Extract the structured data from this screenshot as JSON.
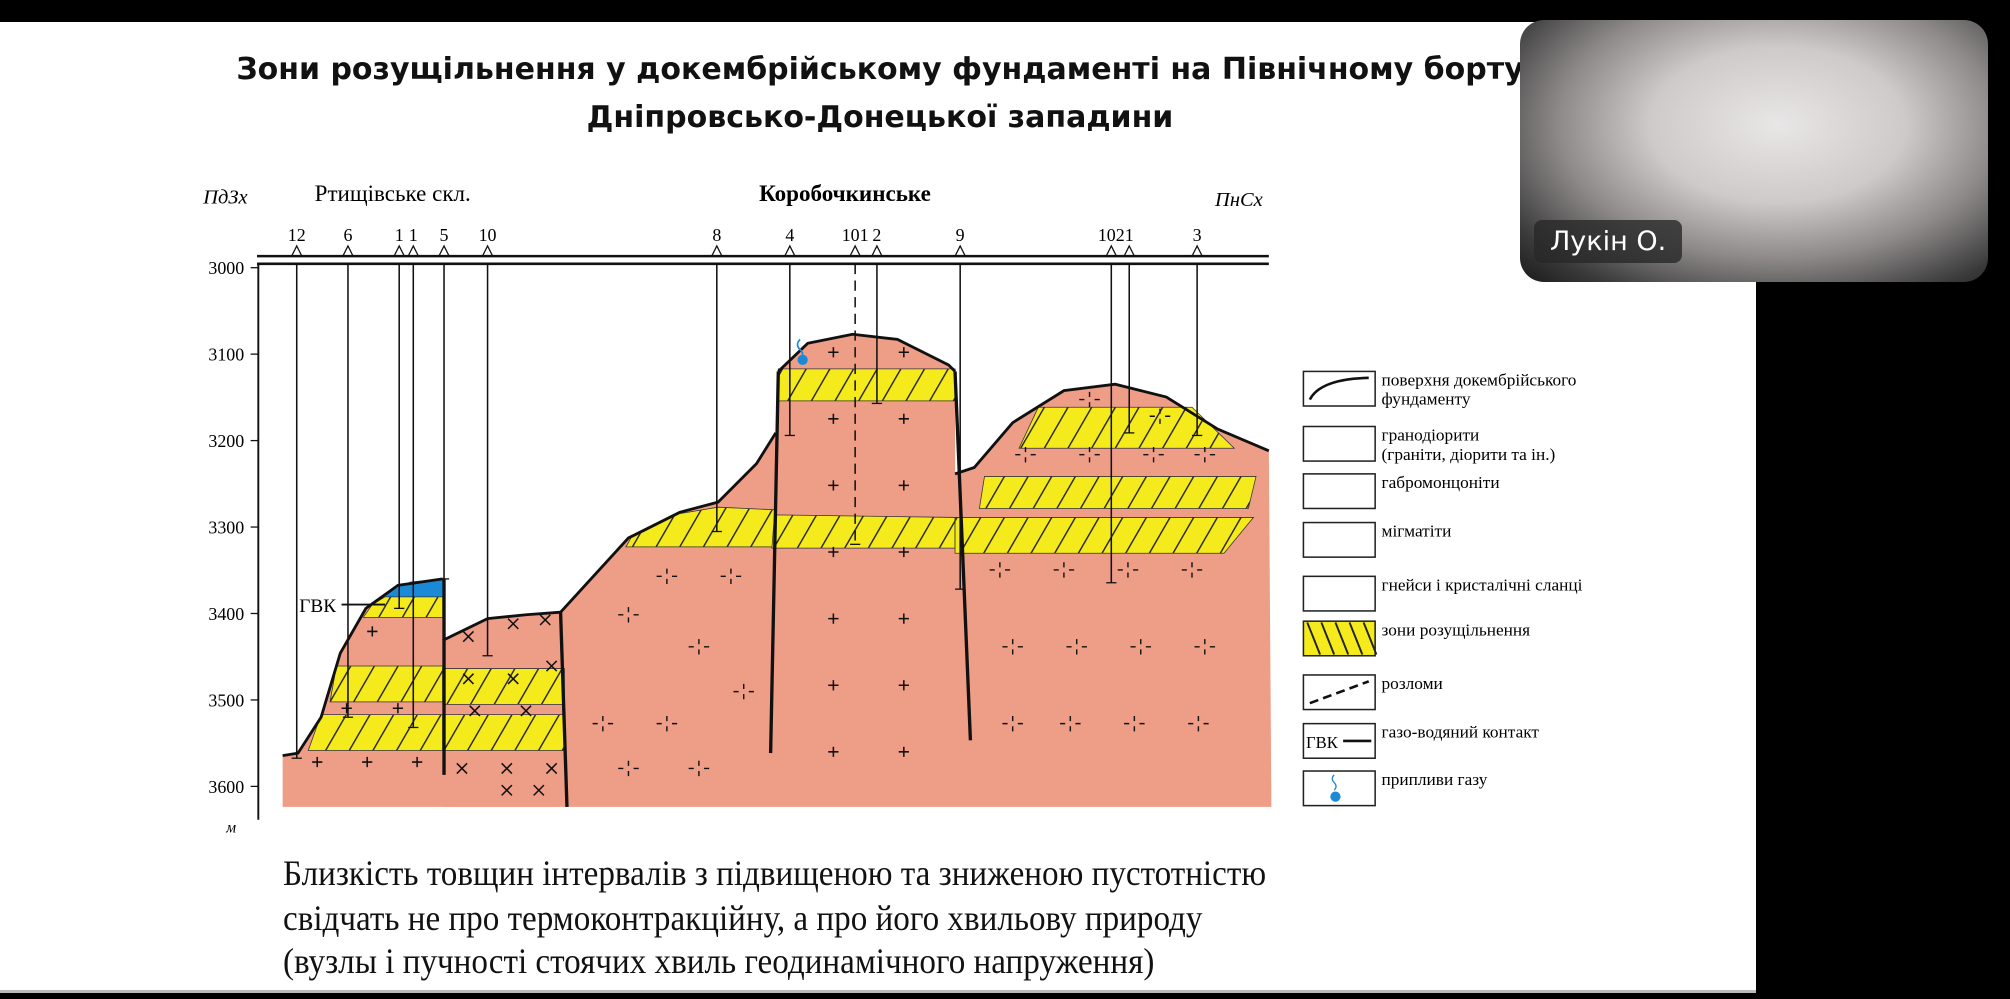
{
  "slide": {
    "title_line1": "Зони розущільнення у докембрійському фундаменті на Північному борту",
    "title_line2": "Дніпровсько-Донецької западини",
    "caption": [
      "Близкість товщин інтервалів з підвищеною та зниженою пустотністю",
      "свідчать не про термоконтракційну, а про його хвильову природу",
      "(вузлы і пучності стоячих хвиль геодинамічного напруження)"
    ]
  },
  "section": {
    "left_direction": "ПдЗх",
    "right_direction": "ПнСх",
    "field_left": "Ртищівське скл.",
    "field_center": "Коробочкинське",
    "wells": [
      "12",
      "6",
      "1",
      "1",
      "5",
      "10",
      "8",
      "4",
      "101",
      "2",
      "9",
      "102",
      "1",
      "3"
    ],
    "depth_ticks": [
      "3000",
      "3100",
      "3200",
      "3300",
      "3400",
      "3500",
      "3600"
    ],
    "depth_unit": "м",
    "gvk_label": "ГВК",
    "colors": {
      "rock": "#ee9d87",
      "zone": "#f5ea1c",
      "gas": "#1a8ad6"
    }
  },
  "legend": [
    {
      "icon": "basement-surface-icon",
      "label": [
        "поверхня докембрійського",
        "фундаменту"
      ]
    },
    {
      "icon": "granodiorite-icon",
      "label": [
        "гранодіорити",
        "(граніти, діорити та ін.)"
      ]
    },
    {
      "icon": "gabbromonzonite-icon",
      "label": [
        "габромонцоніти"
      ]
    },
    {
      "icon": "migmatite-icon",
      "label": [
        "мігматіти"
      ]
    },
    {
      "icon": "gneiss-icon",
      "label": [
        "гнейси і кристалічні сланці"
      ]
    },
    {
      "icon": "decompaction-zone-icon",
      "label": [
        "зони розущільнення"
      ]
    },
    {
      "icon": "fault-icon",
      "label": [
        "розломи"
      ]
    },
    {
      "icon": "gas-water-contact-icon",
      "label": [
        "газо-водяний контакт"
      ],
      "symbol": "ГВК"
    },
    {
      "icon": "gas-inflow-icon",
      "label": [
        "припливи газу"
      ]
    }
  ],
  "webcam": {
    "participant_name": "Лукін О."
  }
}
